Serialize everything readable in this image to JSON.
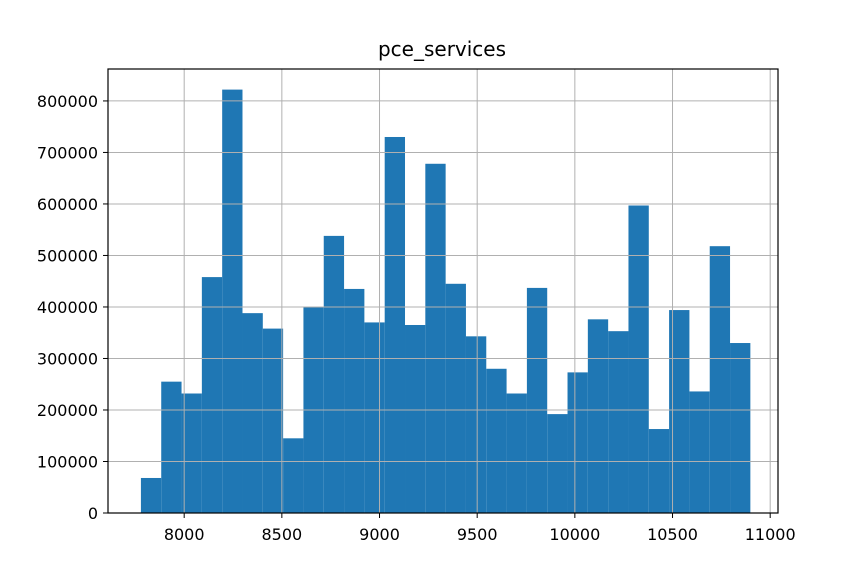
{
  "chart_data": {
    "type": "bar",
    "title": "pce_services",
    "xlabel": "",
    "ylabel": "",
    "grid": true,
    "bar_color": "#1f77b4",
    "xlim": [
      7610,
      11040
    ],
    "ylim": [
      0,
      862000
    ],
    "x_ticks": [
      8000,
      8500,
      9000,
      9500,
      10000,
      10500,
      11000
    ],
    "y_ticks": [
      0,
      100000,
      200000,
      300000,
      400000,
      500000,
      600000,
      700000,
      800000
    ],
    "x_tick_labels": [
      "8000",
      "8500",
      "9000",
      "9500",
      "10000",
      "10500",
      "11000"
    ],
    "y_tick_labels": [
      "0",
      "100000",
      "200000",
      "300000",
      "400000",
      "500000",
      "600000",
      "700000",
      "800000"
    ],
    "bins": [
      {
        "x0": 7778.5,
        "x1": 7882.5,
        "value": 68000
      },
      {
        "x0": 7882.5,
        "x1": 7986.5,
        "value": 255000
      },
      {
        "x0": 7986.5,
        "x1": 8090.5,
        "value": 232000
      },
      {
        "x0": 8090.5,
        "x1": 8194.5,
        "value": 458000
      },
      {
        "x0": 8194.5,
        "x1": 8298.5,
        "value": 822000
      },
      {
        "x0": 8298.5,
        "x1": 8402.5,
        "value": 388000
      },
      {
        "x0": 8402.5,
        "x1": 8506.5,
        "value": 358000
      },
      {
        "x0": 8506.5,
        "x1": 8610.5,
        "value": 145000
      },
      {
        "x0": 8610.5,
        "x1": 8714.5,
        "value": 400000
      },
      {
        "x0": 8714.5,
        "x1": 8818.5,
        "value": 538000
      },
      {
        "x0": 8818.5,
        "x1": 8922.5,
        "value": 435000
      },
      {
        "x0": 8922.5,
        "x1": 9026.5,
        "value": 370000
      },
      {
        "x0": 9026.5,
        "x1": 9130.5,
        "value": 730000
      },
      {
        "x0": 9130.5,
        "x1": 9234.5,
        "value": 365000
      },
      {
        "x0": 9234.5,
        "x1": 9338.5,
        "value": 678000
      },
      {
        "x0": 9338.5,
        "x1": 9442.5,
        "value": 445000
      },
      {
        "x0": 9442.5,
        "x1": 9546.5,
        "value": 343000
      },
      {
        "x0": 9546.5,
        "x1": 9650.5,
        "value": 280000
      },
      {
        "x0": 9650.5,
        "x1": 9754.5,
        "value": 232000
      },
      {
        "x0": 9754.5,
        "x1": 9858.5,
        "value": 437000
      },
      {
        "x0": 9858.5,
        "x1": 9962.5,
        "value": 192000
      },
      {
        "x0": 9962.5,
        "x1": 10066.5,
        "value": 273000
      },
      {
        "x0": 10066.5,
        "x1": 10170.5,
        "value": 376000
      },
      {
        "x0": 10170.5,
        "x1": 10274.5,
        "value": 353000
      },
      {
        "x0": 10274.5,
        "x1": 10378.5,
        "value": 597000
      },
      {
        "x0": 10378.5,
        "x1": 10482.5,
        "value": 163000
      },
      {
        "x0": 10482.5,
        "x1": 10586.5,
        "value": 394000
      },
      {
        "x0": 10586.5,
        "x1": 10690.5,
        "value": 236000
      },
      {
        "x0": 10690.5,
        "x1": 10794.5,
        "value": 518000
      },
      {
        "x0": 10794.5,
        "x1": 10898.5,
        "value": 330000
      }
    ]
  }
}
